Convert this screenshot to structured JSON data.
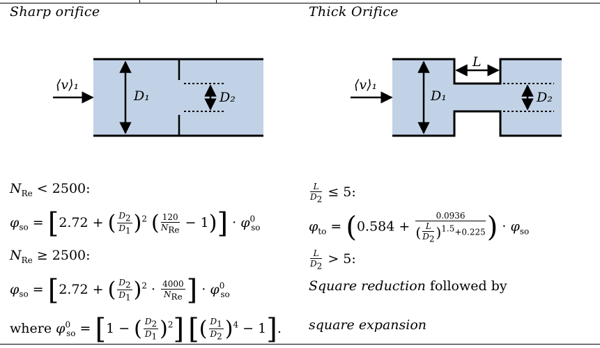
{
  "left": {
    "heading": "Sharp orifice",
    "label_velocity": "⟨v⟩₁",
    "label_d1": "D₁",
    "label_d2": "D₂",
    "eq1_cond": "N_Re < 2500:",
    "eq2_cond": "N_Re ≥ 2500:",
    "eq_constant": "2.72",
    "eq1_num": "120",
    "eq2_num": "4000",
    "where_label": "where"
  },
  "right": {
    "heading": "Thick Orifice",
    "label_velocity": "⟨v⟩₁",
    "label_d1": "D₁",
    "label_d2": "D₂",
    "label_l": "L",
    "cond1_rhs": "≤ 5:",
    "cond2_rhs": "> 5:",
    "eq_constant": "0.584",
    "eq_num": "0.0936",
    "eq_exp": "1.5",
    "eq_add": "+0.225",
    "text_line1_italic": "Square reduction",
    "text_line1_rest": "followed by",
    "text_line2": "square expansion"
  },
  "colors": {
    "fluid": "#c2d2e6",
    "wall": "#000000"
  }
}
